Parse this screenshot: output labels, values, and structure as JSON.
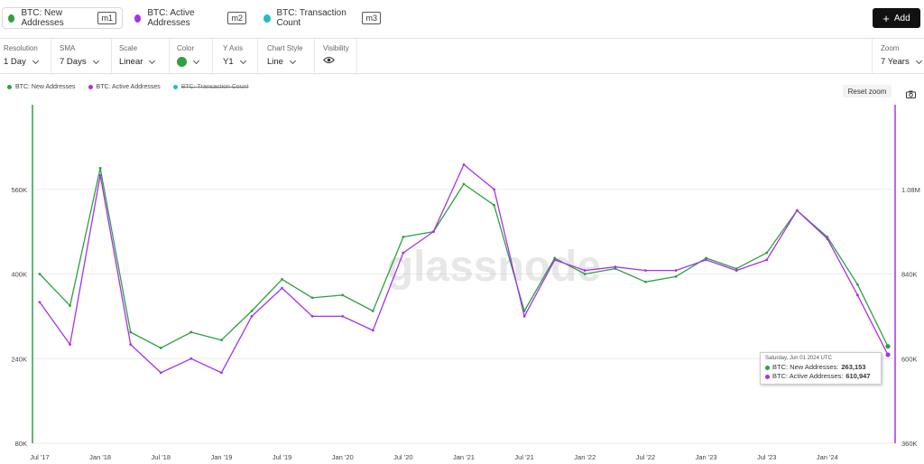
{
  "metrics": [
    {
      "label": "BTC: New Addresses",
      "tag": "m1",
      "color": "#2ea043"
    },
    {
      "label": "BTC: Active Addresses",
      "tag": "m2",
      "color": "#a633e8"
    },
    {
      "label": "BTC: Transaction Count",
      "tag": "m3",
      "color": "#22bfbf"
    }
  ],
  "add_button": {
    "label": "Add"
  },
  "controls": {
    "resolution": {
      "label": "Resolution",
      "value": "1 Day"
    },
    "sma": {
      "label": "SMA",
      "value": "7 Days"
    },
    "scale": {
      "label": "Scale",
      "value": "Linear"
    },
    "color": {
      "label": "Color",
      "value": "#2ea043"
    },
    "y_axis": {
      "label": "Y Axis",
      "value": "Y1"
    },
    "chart_style": {
      "label": "Chart Style",
      "value": "Line"
    },
    "visibility": {
      "label": "Visibility"
    },
    "zoom": {
      "label": "Zoom",
      "value": "7 Years"
    }
  },
  "legend": [
    {
      "label": "BTC: New Addresses",
      "color": "#2ea043",
      "visible": true
    },
    {
      "label": "BTC: Active Addresses",
      "color": "#a633e8",
      "visible": true
    },
    {
      "label": "BTC: Transaction Count",
      "color": "#22bfbf",
      "visible": false
    }
  ],
  "reset_zoom": "Reset zoom",
  "watermark": "glassnode",
  "tooltip": {
    "date": "Saturday, Jun 01 2024 UTC",
    "rows": [
      {
        "label": "BTC: New Addresses:",
        "value": "263,153",
        "color": "#2ea043"
      },
      {
        "label": "BTC: Active Addresses:",
        "value": "610,947",
        "color": "#a633e8"
      }
    ]
  },
  "chart_data": {
    "type": "line",
    "x": [
      "Jul '17",
      "Oct '17",
      "Jan '18",
      "Apr '18",
      "Jul '18",
      "Oct '18",
      "Jan '19",
      "Apr '19",
      "Jul '19",
      "Oct '19",
      "Jan '20",
      "Apr '20",
      "Jul '20",
      "Oct '20",
      "Jan '21",
      "Apr '21",
      "Jul '21",
      "Oct '21",
      "Jan '22",
      "Apr '22",
      "Jul '22",
      "Oct '22",
      "Jan '23",
      "Apr '23",
      "Jul '23",
      "Oct '23",
      "Jan '24",
      "Apr '24",
      "Jun '24"
    ],
    "x_tick_labels": [
      "Jul '17",
      "Jan '18",
      "Jul '18",
      "Jan '19",
      "Jul '19",
      "Jan '20",
      "Jul '20",
      "Jan '21",
      "Jul '21",
      "Jan '22",
      "Jul '22",
      "Jan '23",
      "Jul '23",
      "Jan '24"
    ],
    "series": [
      {
        "name": "BTC: New Addresses",
        "axis": "left",
        "color": "#2ea043",
        "values": [
          400000,
          340000,
          600000,
          290000,
          260000,
          290000,
          275000,
          330000,
          390000,
          355000,
          360000,
          330000,
          470000,
          480000,
          570000,
          530000,
          330000,
          430000,
          400000,
          410000,
          385000,
          395000,
          430000,
          410000,
          440000,
          520000,
          470000,
          380000,
          263153
        ]
      },
      {
        "name": "BTC: Active Addresses",
        "axis": "right",
        "color": "#a633e8",
        "values": [
          760000,
          640000,
          1120000,
          640000,
          560000,
          600000,
          560000,
          720000,
          800000,
          720000,
          720000,
          680000,
          900000,
          960000,
          1150000,
          1080000,
          720000,
          880000,
          850000,
          860000,
          850000,
          850000,
          880000,
          850000,
          880000,
          1020000,
          940000,
          780000,
          610947
        ]
      }
    ],
    "y_left": {
      "ticks": [
        80000,
        240000,
        400000,
        560000
      ],
      "tick_labels": [
        "80K",
        "240K",
        "400K",
        "560K"
      ],
      "range": [
        80000,
        720000
      ]
    },
    "y_right": {
      "ticks": [
        360000,
        600000,
        840000,
        1080000
      ],
      "tick_labels": [
        "360K",
        "600K",
        "840K",
        "1.08M"
      ],
      "range": [
        360000,
        1320000
      ]
    },
    "grid": true,
    "legend_position": "top-left"
  }
}
